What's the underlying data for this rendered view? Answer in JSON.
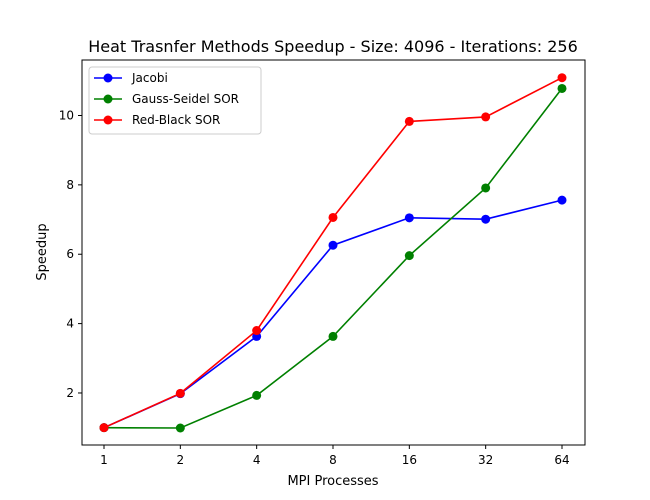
{
  "chart_data": {
    "type": "line",
    "title": "Heat Trasnfer Methods Speedup - Size: 4096 - Iterations: 256",
    "xlabel": "MPI Processes",
    "ylabel": "Speedup",
    "categories": [
      "1",
      "2",
      "4",
      "8",
      "16",
      "32",
      "64"
    ],
    "yticks": [
      2,
      4,
      6,
      8,
      10
    ],
    "ylim": [
      0.5,
      11.6
    ],
    "grid": false,
    "legend_position": "top-left",
    "series": [
      {
        "name": "Jacobi",
        "color": "#0000ff",
        "values": [
          1.0,
          1.98,
          3.63,
          6.26,
          7.05,
          7.01,
          7.56
        ]
      },
      {
        "name": "Gauss-Seidel SOR",
        "color": "#008000",
        "values": [
          1.0,
          0.99,
          1.93,
          3.63,
          5.96,
          7.91,
          10.78
        ]
      },
      {
        "name": "Red-Black SOR",
        "color": "#ff0000",
        "values": [
          1.0,
          1.99,
          3.8,
          7.06,
          9.83,
          9.96,
          11.09
        ]
      }
    ]
  }
}
